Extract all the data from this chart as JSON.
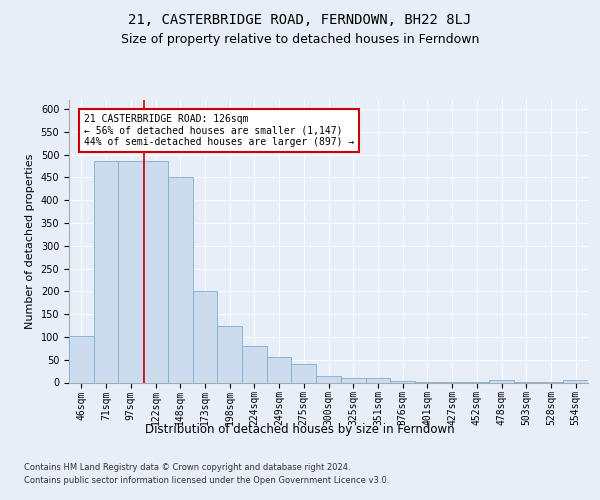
{
  "title": "21, CASTERBRIDGE ROAD, FERNDOWN, BH22 8LJ",
  "subtitle": "Size of property relative to detached houses in Ferndown",
  "xlabel": "Distribution of detached houses by size in Ferndown",
  "ylabel": "Number of detached properties",
  "categories": [
    "46sqm",
    "71sqm",
    "97sqm",
    "122sqm",
    "148sqm",
    "173sqm",
    "198sqm",
    "224sqm",
    "249sqm",
    "275sqm",
    "300sqm",
    "325sqm",
    "351sqm",
    "376sqm",
    "401sqm",
    "427sqm",
    "452sqm",
    "478sqm",
    "503sqm",
    "528sqm",
    "554sqm"
  ],
  "values": [
    103,
    487,
    487,
    487,
    452,
    200,
    125,
    80,
    57,
    40,
    15,
    10,
    10,
    3,
    2,
    1,
    1,
    6,
    1,
    1,
    6
  ],
  "bar_color": "#ccdcee",
  "bar_edge_color": "#7bafd4",
  "vline_color": "#cc0000",
  "vline_x": 3.0,
  "annotation_text": "21 CASTERBRIDGE ROAD: 126sqm\n← 56% of detached houses are smaller (1,147)\n44% of semi-detached houses are larger (897) →",
  "ylim": [
    0,
    620
  ],
  "yticks": [
    0,
    50,
    100,
    150,
    200,
    250,
    300,
    350,
    400,
    450,
    500,
    550,
    600
  ],
  "bg_color": "#e8eef7",
  "grid_color": "#ffffff",
  "footer_line1": "Contains HM Land Registry data © Crown copyright and database right 2024.",
  "footer_line2": "Contains public sector information licensed under the Open Government Licence v3.0.",
  "title_fontsize": 10,
  "subtitle_fontsize": 9,
  "annotation_fontsize": 7,
  "ylabel_fontsize": 8,
  "tick_fontsize": 7,
  "xlabel_fontsize": 8.5,
  "footer_fontsize": 6
}
